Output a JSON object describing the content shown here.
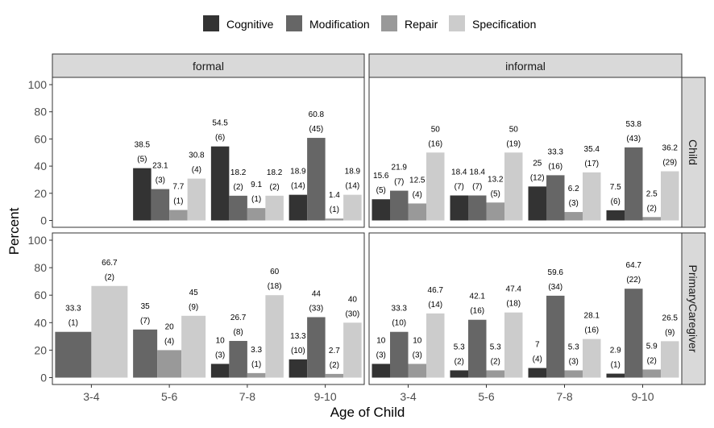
{
  "chart_data": {
    "type": "bar",
    "xlabel": "Age of Child",
    "ylabel": "Percent",
    "ylim": [
      0,
      100
    ],
    "yticks": [
      0,
      20,
      40,
      60,
      80,
      100
    ],
    "categories": [
      "3-4",
      "5-6",
      "7-8",
      "9-10"
    ],
    "column_facets": [
      "formal",
      "informal"
    ],
    "row_facets": [
      "Child",
      "PrimaryCaregiver"
    ],
    "legend": {
      "position": "top",
      "entries": [
        {
          "name": "Cognitive",
          "color": "#333333"
        },
        {
          "name": "Modification",
          "color": "#666666"
        },
        {
          "name": "Repair",
          "color": "#999999"
        },
        {
          "name": "Specification",
          "color": "#cccccc"
        }
      ]
    },
    "panels": [
      {
        "row": "Child",
        "col": "formal",
        "groups": [
          {
            "category": "3-4",
            "bars": []
          },
          {
            "category": "5-6",
            "bars": [
              {
                "series": "Cognitive",
                "value": 38.5,
                "count": "(5)"
              },
              {
                "series": "Modification",
                "value": 23.1,
                "count": "(3)"
              },
              {
                "series": "Repair",
                "value": 7.7,
                "count": "(1)"
              },
              {
                "series": "Specification",
                "value": 30.8,
                "count": "(4)"
              }
            ]
          },
          {
            "category": "7-8",
            "bars": [
              {
                "series": "Cognitive",
                "value": 54.5,
                "count": "(6)"
              },
              {
                "series": "Modification",
                "value": 18.2,
                "count": "(2)"
              },
              {
                "series": "Repair",
                "value": 9.1,
                "count": "(1)"
              },
              {
                "series": "Specification",
                "value": 18.2,
                "count": "(2)"
              }
            ]
          },
          {
            "category": "9-10",
            "bars": [
              {
                "series": "Cognitive",
                "value": 18.9,
                "count": "(14)"
              },
              {
                "series": "Modification",
                "value": 60.8,
                "count": "(45)"
              },
              {
                "series": "Repair",
                "value": 1.4,
                "count": "(1)"
              },
              {
                "series": "Specification",
                "value": 18.9,
                "count": "(14)"
              }
            ]
          }
        ]
      },
      {
        "row": "Child",
        "col": "informal",
        "groups": [
          {
            "category": "3-4",
            "bars": [
              {
                "series": "Cognitive",
                "value": 15.6,
                "count": "(5)"
              },
              {
                "series": "Modification",
                "value": 21.9,
                "count": "(7)"
              },
              {
                "series": "Repair",
                "value": 12.5,
                "count": "(4)"
              },
              {
                "series": "Specification",
                "value": 50,
                "count": "(16)"
              }
            ]
          },
          {
            "category": "5-6",
            "bars": [
              {
                "series": "Cognitive",
                "value": 18.4,
                "count": "(7)"
              },
              {
                "series": "Modification",
                "value": 18.4,
                "count": "(7)"
              },
              {
                "series": "Repair",
                "value": 13.2,
                "count": "(5)"
              },
              {
                "series": "Specification",
                "value": 50,
                "count": "(19)"
              }
            ]
          },
          {
            "category": "7-8",
            "bars": [
              {
                "series": "Cognitive",
                "value": 25,
                "count": "(12)"
              },
              {
                "series": "Modification",
                "value": 33.3,
                "count": "(16)"
              },
              {
                "series": "Repair",
                "value": 6.2,
                "count": "(3)"
              },
              {
                "series": "Specification",
                "value": 35.4,
                "count": "(17)"
              }
            ]
          },
          {
            "category": "9-10",
            "bars": [
              {
                "series": "Cognitive",
                "value": 7.5,
                "count": "(6)"
              },
              {
                "series": "Modification",
                "value": 53.8,
                "count": "(43)"
              },
              {
                "series": "Repair",
                "value": 2.5,
                "count": "(2)"
              },
              {
                "series": "Specification",
                "value": 36.2,
                "count": "(29)"
              }
            ]
          }
        ]
      },
      {
        "row": "PrimaryCaregiver",
        "col": "formal",
        "groups": [
          {
            "category": "3-4",
            "bars": [
              {
                "series": "Modification",
                "value": 33.3,
                "count": "(1)"
              },
              {
                "series": "Specification",
                "value": 66.7,
                "count": "(2)"
              }
            ]
          },
          {
            "category": "5-6",
            "bars": [
              {
                "series": "Modification",
                "value": 35,
                "count": "(7)"
              },
              {
                "series": "Repair",
                "value": 20,
                "count": "(4)"
              },
              {
                "series": "Specification",
                "value": 45,
                "count": "(9)"
              }
            ]
          },
          {
            "category": "7-8",
            "bars": [
              {
                "series": "Cognitive",
                "value": 10,
                "count": "(3)"
              },
              {
                "series": "Modification",
                "value": 26.7,
                "count": "(8)"
              },
              {
                "series": "Repair",
                "value": 3.3,
                "count": "(1)"
              },
              {
                "series": "Specification",
                "value": 60,
                "count": "(18)"
              }
            ]
          },
          {
            "category": "9-10",
            "bars": [
              {
                "series": "Cognitive",
                "value": 13.3,
                "count": "(10)"
              },
              {
                "series": "Modification",
                "value": 44,
                "count": "(33)"
              },
              {
                "series": "Repair",
                "value": 2.7,
                "count": "(2)"
              },
              {
                "series": "Specification",
                "value": 40,
                "count": "(30)"
              }
            ]
          }
        ]
      },
      {
        "row": "PrimaryCaregiver",
        "col": "informal",
        "groups": [
          {
            "category": "3-4",
            "bars": [
              {
                "series": "Cognitive",
                "value": 10,
                "count": "(3)"
              },
              {
                "series": "Modification",
                "value": 33.3,
                "count": "(10)"
              },
              {
                "series": "Repair",
                "value": 10,
                "count": "(3)"
              },
              {
                "series": "Specification",
                "value": 46.7,
                "count": "(14)"
              }
            ]
          },
          {
            "category": "5-6",
            "bars": [
              {
                "series": "Cognitive",
                "value": 5.3,
                "count": "(2)"
              },
              {
                "series": "Modification",
                "value": 42.1,
                "count": "(16)"
              },
              {
                "series": "Repair",
                "value": 5.3,
                "count": "(2)"
              },
              {
                "series": "Specification",
                "value": 47.4,
                "count": "(18)"
              }
            ]
          },
          {
            "category": "7-8",
            "bars": [
              {
                "series": "Cognitive",
                "value": 7,
                "count": "(4)"
              },
              {
                "series": "Modification",
                "value": 59.6,
                "count": "(34)"
              },
              {
                "series": "Repair",
                "value": 5.3,
                "count": "(3)"
              },
              {
                "series": "Specification",
                "value": 28.1,
                "count": "(16)"
              }
            ]
          },
          {
            "category": "9-10",
            "bars": [
              {
                "series": "Cognitive",
                "value": 2.9,
                "count": "(1)"
              },
              {
                "series": "Modification",
                "value": 64.7,
                "count": "(22)"
              },
              {
                "series": "Repair",
                "value": 5.9,
                "count": "(2)"
              },
              {
                "series": "Specification",
                "value": 26.5,
                "count": "(9)"
              }
            ]
          }
        ]
      }
    ]
  }
}
